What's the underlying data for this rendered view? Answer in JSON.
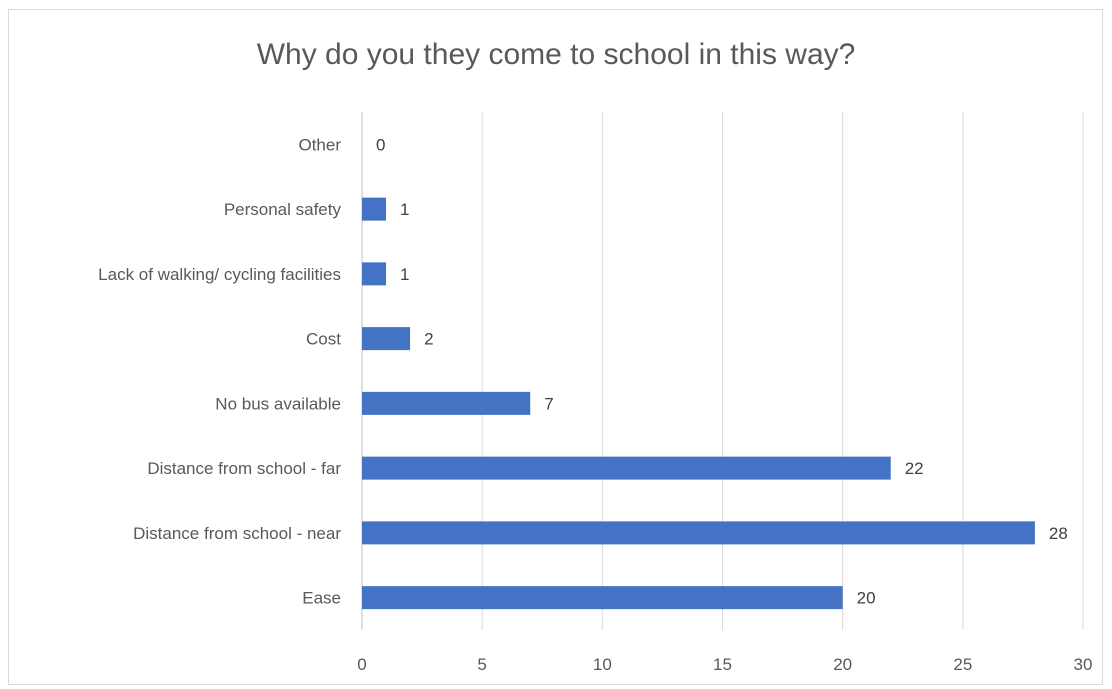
{
  "chart_data": {
    "type": "bar",
    "orientation": "horizontal",
    "title": "Why do you they come to school in this way?",
    "categories": [
      "Ease",
      "Distance from school - near",
      "Distance from school - far",
      "No bus available",
      "Cost",
      "Lack of walking/ cycling facilities",
      "Personal safety",
      "Other"
    ],
    "values": [
      20,
      28,
      22,
      7,
      2,
      1,
      1,
      0
    ],
    "xlim": [
      0,
      30
    ],
    "xticks": [
      0,
      5,
      10,
      15,
      20,
      25,
      30
    ],
    "xlabel": "",
    "ylabel": "",
    "grid": "vertical",
    "legend": "none",
    "bar_color": "#4472c4",
    "data_labels": true
  }
}
